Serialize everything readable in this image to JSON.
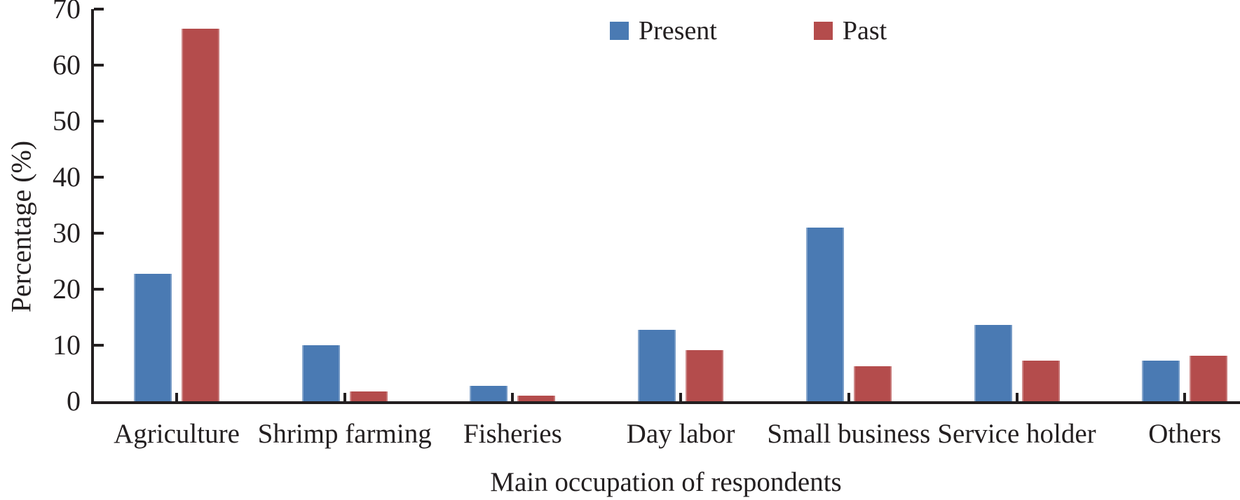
{
  "chart_data": {
    "type": "bar",
    "categories": [
      "Agriculture",
      "Shrimp farming",
      "Fisheries",
      "Day labor",
      "Small business",
      "Service holder",
      "Others"
    ],
    "series": [
      {
        "name": "Present",
        "color": "#4a7ab3",
        "values": [
          22.8,
          10.0,
          2.8,
          12.8,
          31.0,
          13.6,
          7.3
        ]
      },
      {
        "name": "Past",
        "color": "#b44c4c",
        "values": [
          66.5,
          1.8,
          1.0,
          9.1,
          6.3,
          7.3,
          8.1
        ]
      }
    ],
    "title": "",
    "xlabel": "Main occupation of respondents",
    "ylabel": "Percentage (%)",
    "ylim": [
      0,
      70
    ],
    "yticks": [
      0,
      10,
      20,
      30,
      40,
      50,
      60,
      70
    ],
    "grid": false,
    "legend_position": "top-center",
    "axis_color": "#231f20"
  }
}
